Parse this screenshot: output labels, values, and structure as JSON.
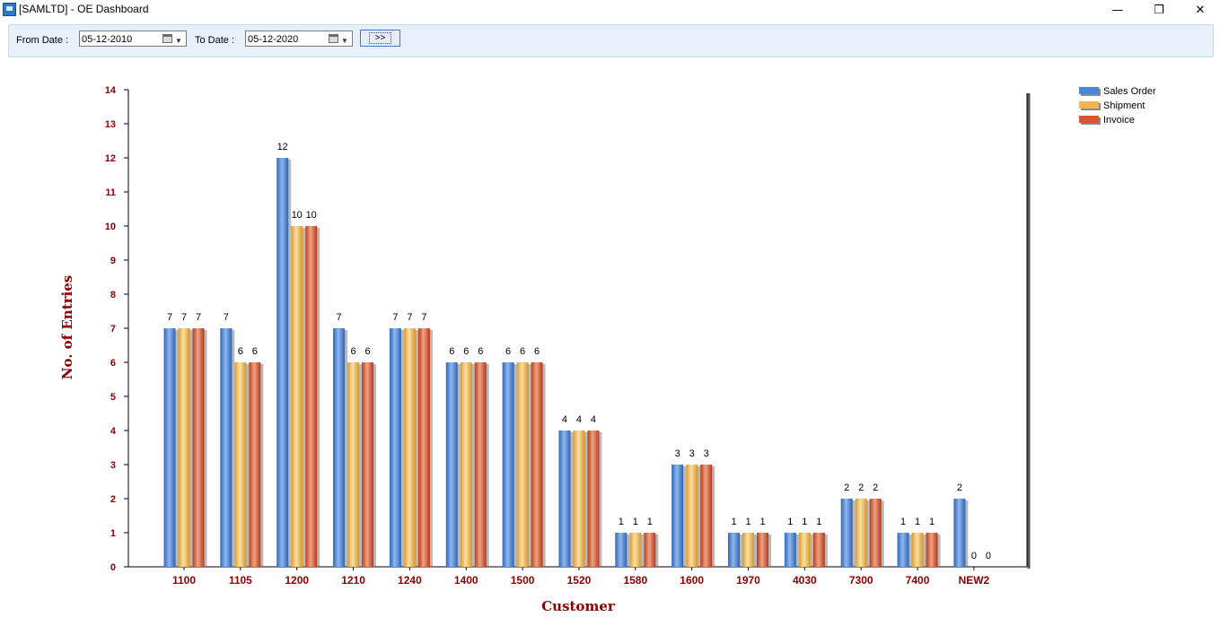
{
  "window": {
    "title": "[SAMLTD] - OE Dashboard",
    "minimize_glyph": "—",
    "restore_glyph": "❐",
    "close_glyph": "✕"
  },
  "filters": {
    "from_label": "From Date :",
    "from_value": "05-12-2010",
    "to_label": "To Date :",
    "to_value": "05-12-2020",
    "go_label": ">>"
  },
  "chart_data": {
    "type": "bar",
    "xlabel": "Customer",
    "ylabel": "No. of Entries",
    "ylim": [
      0,
      14
    ],
    "yticks": [
      0,
      1,
      2,
      3,
      4,
      5,
      6,
      7,
      8,
      9,
      10,
      11,
      12,
      13,
      14
    ],
    "grid": false,
    "legend_position": "top-right",
    "data_labels": true,
    "categories": [
      "1100",
      "1105",
      "1200",
      "1210",
      "1240",
      "1400",
      "1500",
      "1520",
      "1580",
      "1600",
      "1970",
      "4030",
      "7300",
      "7400",
      "NEW2"
    ],
    "series": [
      {
        "name": "Sales Order",
        "color": "#4a86d6",
        "values": [
          7,
          7,
          12,
          7,
          7,
          6,
          6,
          4,
          1,
          3,
          1,
          1,
          2,
          1,
          2
        ]
      },
      {
        "name": "Shipment",
        "color": "#f0b552",
        "values": [
          7,
          6,
          10,
          6,
          7,
          6,
          6,
          4,
          1,
          3,
          1,
          1,
          2,
          1,
          0
        ]
      },
      {
        "name": "Invoice",
        "color": "#d9542b",
        "values": [
          7,
          6,
          10,
          6,
          7,
          6,
          6,
          4,
          1,
          3,
          1,
          1,
          2,
          1,
          0
        ]
      }
    ],
    "colors": {
      "axis_text": "#8b0000",
      "axis_line": "#000000"
    }
  }
}
